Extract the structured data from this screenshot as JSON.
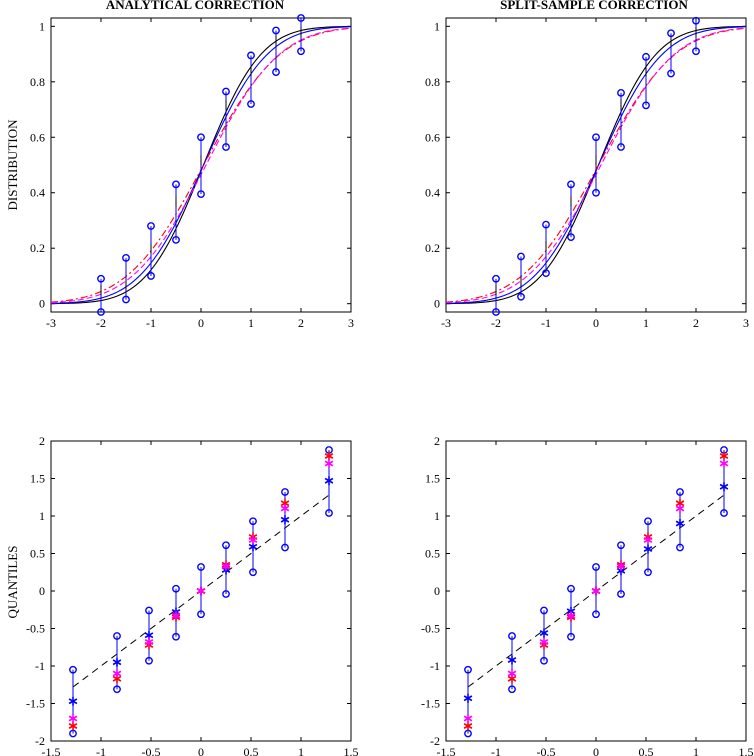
{
  "colors": {
    "band": "#0000ff",
    "black": "#000000",
    "blue": "#0000ff",
    "red": "#ff0000",
    "magenta": "#ff00ff"
  },
  "chart_data": [
    {
      "type": "line",
      "title": "ANALYTICAL CORRECTION",
      "ylabel": "DISTRIBUTION",
      "xlim": [
        -3,
        3
      ],
      "ylim": [
        -0.03,
        1.03
      ],
      "xticks": [
        "-3",
        "-2",
        "-1",
        "0",
        "1",
        "2",
        "3"
      ],
      "yticks": [
        "0",
        "0.2",
        "0.4",
        "0.6",
        "0.8",
        "1"
      ],
      "xtick_values": [
        -3,
        -2,
        -1,
        0,
        1,
        2,
        3
      ],
      "ytick_values": [
        0,
        0.2,
        0.4,
        0.6,
        0.8,
        1
      ],
      "curves": [
        {
          "name": "black",
          "color": "#000000",
          "dash": "solid",
          "scale": 0.9,
          "shift": 0.05
        },
        {
          "name": "blue",
          "color": "#0000ff",
          "dash": "solid",
          "scale": 1.0,
          "shift": 0.05
        },
        {
          "name": "red",
          "color": "#ff0000",
          "dash": "dashdot",
          "scale": 1.2,
          "shift": 0.05
        },
        {
          "name": "magenta",
          "color": "#ff00ff",
          "dash": "dashed",
          "scale": 1.15,
          "shift": 0.1
        }
      ],
      "x": [
        -2,
        -1.5,
        -1,
        -0.5,
        0,
        0.5,
        1,
        1.5,
        2
      ],
      "upper": [
        0.09,
        0.165,
        0.28,
        0.43,
        0.6,
        0.765,
        0.895,
        0.985,
        1.03
      ],
      "lower": [
        -0.03,
        0.015,
        0.1,
        0.23,
        0.395,
        0.565,
        0.72,
        0.835,
        0.91
      ],
      "tick_top": [
        0.03,
        0.05,
        0.18,
        0.35,
        0.5,
        0.7,
        0.82,
        0.93,
        0.96
      ]
    },
    {
      "type": "line",
      "title": "SPLIT-SAMPLE CORRECTION",
      "ylabel": "",
      "xlim": [
        -3,
        3
      ],
      "ylim": [
        -0.03,
        1.03
      ],
      "xticks": [
        "-3",
        "-2",
        "-1",
        "0",
        "1",
        "2",
        "3"
      ],
      "yticks": [
        "0",
        "0.2",
        "0.4",
        "0.6",
        "0.8",
        "1"
      ],
      "xtick_values": [
        -3,
        -2,
        -1,
        0,
        1,
        2,
        3
      ],
      "ytick_values": [
        0,
        0.2,
        0.4,
        0.6,
        0.8,
        1
      ],
      "curves": [
        {
          "name": "black",
          "color": "#000000",
          "dash": "solid",
          "scale": 0.9,
          "shift": 0.05
        },
        {
          "name": "blue",
          "color": "#0000ff",
          "dash": "solid",
          "scale": 1.0,
          "shift": 0.05
        },
        {
          "name": "red",
          "color": "#ff0000",
          "dash": "dashdot",
          "scale": 1.2,
          "shift": 0.05
        },
        {
          "name": "magenta",
          "color": "#ff00ff",
          "dash": "dashed",
          "scale": 1.15,
          "shift": 0.1
        }
      ],
      "x": [
        -2,
        -1.5,
        -1,
        -0.5,
        0,
        0.5,
        1,
        1.5,
        2
      ],
      "upper": [
        0.09,
        0.17,
        0.285,
        0.43,
        0.6,
        0.76,
        0.89,
        0.975,
        1.02
      ],
      "lower": [
        -0.03,
        0.025,
        0.11,
        0.24,
        0.4,
        0.565,
        0.715,
        0.83,
        0.91
      ],
      "tick_top": [
        0.03,
        0.06,
        0.19,
        0.35,
        0.5,
        0.7,
        0.82,
        0.93,
        0.96
      ]
    },
    {
      "type": "scatter",
      "title": "",
      "ylabel": "QUANTILES",
      "xlim": [
        -1.5,
        1.5
      ],
      "ylim": [
        -2,
        2
      ],
      "xticks": [
        "-1.5",
        "-1",
        "-0.5",
        "0",
        "0.5",
        "1",
        "1.5"
      ],
      "yticks": [
        "-2",
        "-1.5",
        "-1",
        "-0.5",
        "0",
        "0.5",
        "1",
        "1.5",
        "2"
      ],
      "xtick_values": [
        -1.5,
        -1,
        -0.5,
        0,
        0.5,
        1,
        1.5
      ],
      "ytick_values": [
        -2,
        -1.5,
        -1,
        -0.5,
        0,
        0.5,
        1,
        1.5,
        2
      ],
      "x": [
        -1.28,
        -0.84,
        -0.52,
        -0.25,
        0,
        0.25,
        0.52,
        0.84,
        1.28
      ],
      "upper": [
        -1.05,
        -0.6,
        -0.26,
        0.03,
        0.32,
        0.61,
        0.93,
        1.32,
        1.88
      ],
      "lower": [
        -1.9,
        -1.31,
        -0.93,
        -0.61,
        -0.31,
        -0.04,
        0.25,
        0.58,
        1.04
      ],
      "series": [
        {
          "name": "blue",
          "color": "#0000ff",
          "values": [
            -1.47,
            -0.95,
            -0.59,
            -0.28,
            0.0,
            0.28,
            0.59,
            0.95,
            1.47
          ]
        },
        {
          "name": "red",
          "color": "#ff0000",
          "values": [
            -1.8,
            -1.17,
            -0.72,
            -0.35,
            0.0,
            0.35,
            0.72,
            1.17,
            1.8
          ]
        },
        {
          "name": "magenta",
          "color": "#ff00ff",
          "values": [
            -1.7,
            -1.1,
            -0.68,
            -0.33,
            0.0,
            0.33,
            0.68,
            1.1,
            1.7
          ]
        }
      ],
      "reference_line": {
        "x": [
          -1.28,
          1.28
        ],
        "y": [
          -1.28,
          1.28
        ]
      }
    },
    {
      "type": "scatter",
      "title": "",
      "ylabel": "",
      "xlim": [
        -1.5,
        1.5
      ],
      "ylim": [
        -2,
        2
      ],
      "xticks": [
        "-1.5",
        "-1",
        "-0.5",
        "0",
        "0.5",
        "1",
        "1.5"
      ],
      "yticks": [
        "-2",
        "-1.5",
        "-1",
        "-0.5",
        "0",
        "0.5",
        "1",
        "1.5",
        "2"
      ],
      "xtick_values": [
        -1.5,
        -1,
        -0.5,
        0,
        0.5,
        1,
        1.5
      ],
      "ytick_values": [
        -2,
        -1.5,
        -1,
        -0.5,
        0,
        0.5,
        1,
        1.5,
        2
      ],
      "x": [
        -1.28,
        -0.84,
        -0.52,
        -0.25,
        0,
        0.25,
        0.52,
        0.84,
        1.28
      ],
      "upper": [
        -1.05,
        -0.6,
        -0.26,
        0.03,
        0.32,
        0.61,
        0.93,
        1.32,
        1.88
      ],
      "lower": [
        -1.9,
        -1.31,
        -0.93,
        -0.61,
        -0.31,
        -0.04,
        0.25,
        0.58,
        1.04
      ],
      "series": [
        {
          "name": "blue",
          "color": "#0000ff",
          "values": [
            -1.43,
            -0.92,
            -0.56,
            -0.27,
            0.0,
            0.27,
            0.56,
            0.9,
            1.39
          ]
        },
        {
          "name": "red",
          "color": "#ff0000",
          "values": [
            -1.8,
            -1.17,
            -0.72,
            -0.35,
            0.0,
            0.35,
            0.72,
            1.17,
            1.8
          ]
        },
        {
          "name": "magenta",
          "color": "#ff00ff",
          "values": [
            -1.7,
            -1.1,
            -0.68,
            -0.33,
            0.0,
            0.33,
            0.68,
            1.1,
            1.7
          ]
        }
      ],
      "reference_line": {
        "x": [
          -1.28,
          1.28
        ],
        "y": [
          -1.28,
          1.28
        ]
      }
    }
  ]
}
